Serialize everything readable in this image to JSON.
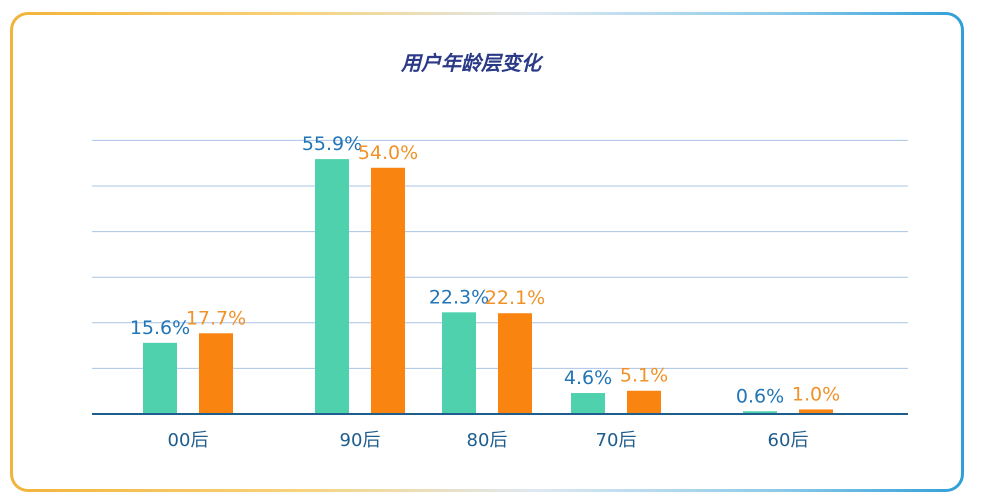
{
  "chart_data": {
    "type": "bar",
    "title": "用户年龄层变化",
    "categories": [
      "00后",
      "90后",
      "80后",
      "70后",
      "60后"
    ],
    "series": [
      {
        "values": [
          15.6,
          55.9,
          22.3,
          4.6,
          0.6
        ],
        "labels": [
          "15.6%",
          "55.9%",
          "22.3%",
          "4.6%",
          "0.6%"
        ],
        "color": "#4fd1ad",
        "label_color": "#2275b6"
      },
      {
        "values": [
          17.7,
          54.0,
          22.1,
          5.1,
          1.0
        ],
        "labels": [
          "17.7%",
          "54.0%",
          "22.1%",
          "5.1%",
          "1.0%"
        ],
        "color": "#f98510",
        "label_color": "#f0922a"
      }
    ],
    "ylim": [
      0,
      60
    ],
    "grid": true,
    "colors": {
      "title": "#2b3a86",
      "axis": "#1f5d8c",
      "grid": "#aac4e6",
      "tick_label": "#1f5d8c"
    }
  }
}
